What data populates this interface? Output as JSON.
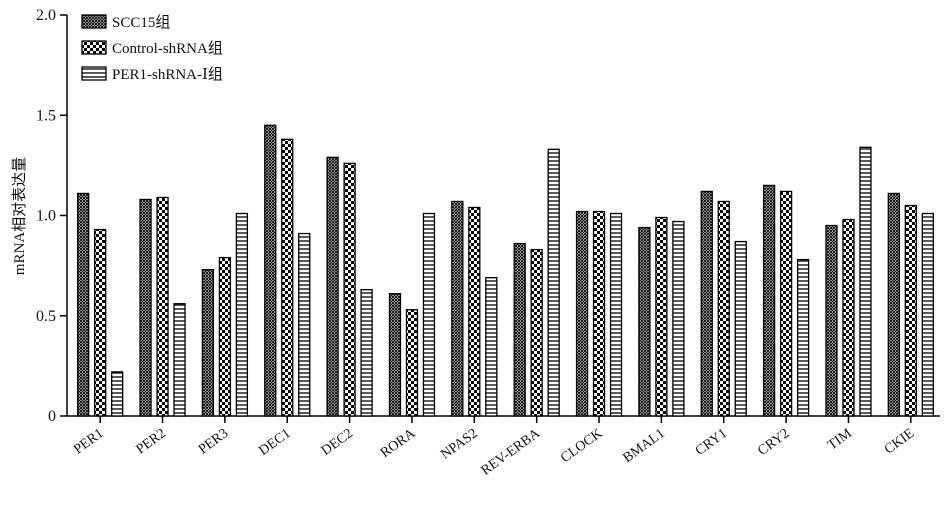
{
  "chart_data": {
    "type": "bar",
    "categories": [
      "PER1",
      "PER2",
      "PER3",
      "DEC1",
      "DEC2",
      "RORA",
      "NPAS2",
      "REV-ERBA",
      "CLOCK",
      "BMAL1",
      "CRY1",
      "CRY2",
      "TIM",
      "CKIE"
    ],
    "series": [
      {
        "name": "SCC15组",
        "pattern": "crosshatch",
        "values": [
          1.11,
          1.08,
          0.73,
          1.45,
          1.29,
          0.61,
          1.07,
          0.86,
          1.02,
          0.94,
          1.12,
          1.15,
          0.95,
          1.11
        ]
      },
      {
        "name": "Control-shRNA组",
        "pattern": "checker",
        "values": [
          0.93,
          1.09,
          0.79,
          1.38,
          1.26,
          0.53,
          1.04,
          0.83,
          1.02,
          0.99,
          1.07,
          1.12,
          0.98,
          1.05
        ]
      },
      {
        "name": "PER1-shRNA-Ⅰ组",
        "pattern": "horizontal-lines",
        "values": [
          0.22,
          0.56,
          1.01,
          0.91,
          0.63,
          1.01,
          0.69,
          1.33,
          1.01,
          0.97,
          0.87,
          0.78,
          1.34,
          1.01
        ]
      }
    ],
    "ylabel": "mRNA相对表达量",
    "xlabel": "",
    "ylim": [
      0,
      2.0
    ],
    "yticks": [
      "0",
      "0.5",
      "1.0",
      "1.5",
      "2.0"
    ],
    "ytick_values": [
      0,
      0.5,
      1.0,
      1.5,
      2.0
    ],
    "grid": false,
    "legend_position": "top-left",
    "colors": {
      "bar_stroke": "#000000",
      "axis": "#000000"
    }
  }
}
